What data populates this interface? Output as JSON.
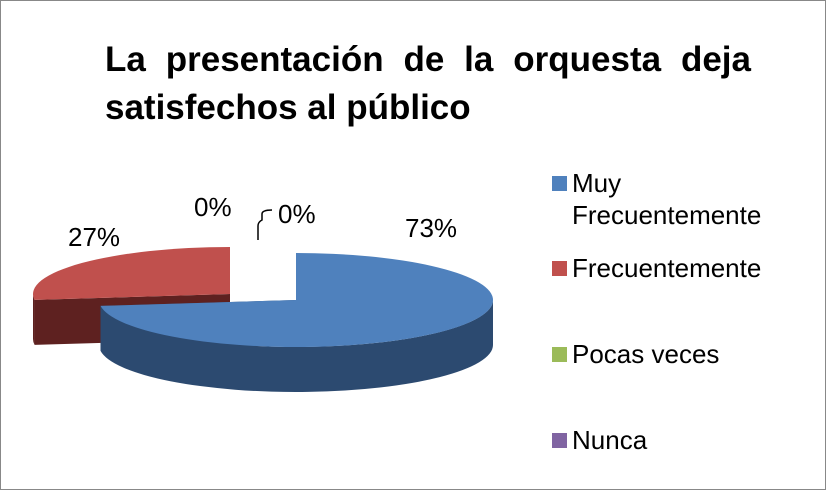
{
  "chart_data": {
    "type": "pie",
    "title": "La presentación de la orquesta deja satisfechos al público",
    "categories": [
      "Muy Frecuentemente",
      "Frecuentemente",
      "Pocas veces",
      "Nunca"
    ],
    "values": [
      73,
      27,
      0,
      0
    ],
    "value_labels": [
      "73%",
      "27%",
      "0%",
      "0%"
    ],
    "colors": [
      "#4f81bd",
      "#c0504d",
      "#9bbb59",
      "#8064a2"
    ],
    "legend": "right"
  }
}
